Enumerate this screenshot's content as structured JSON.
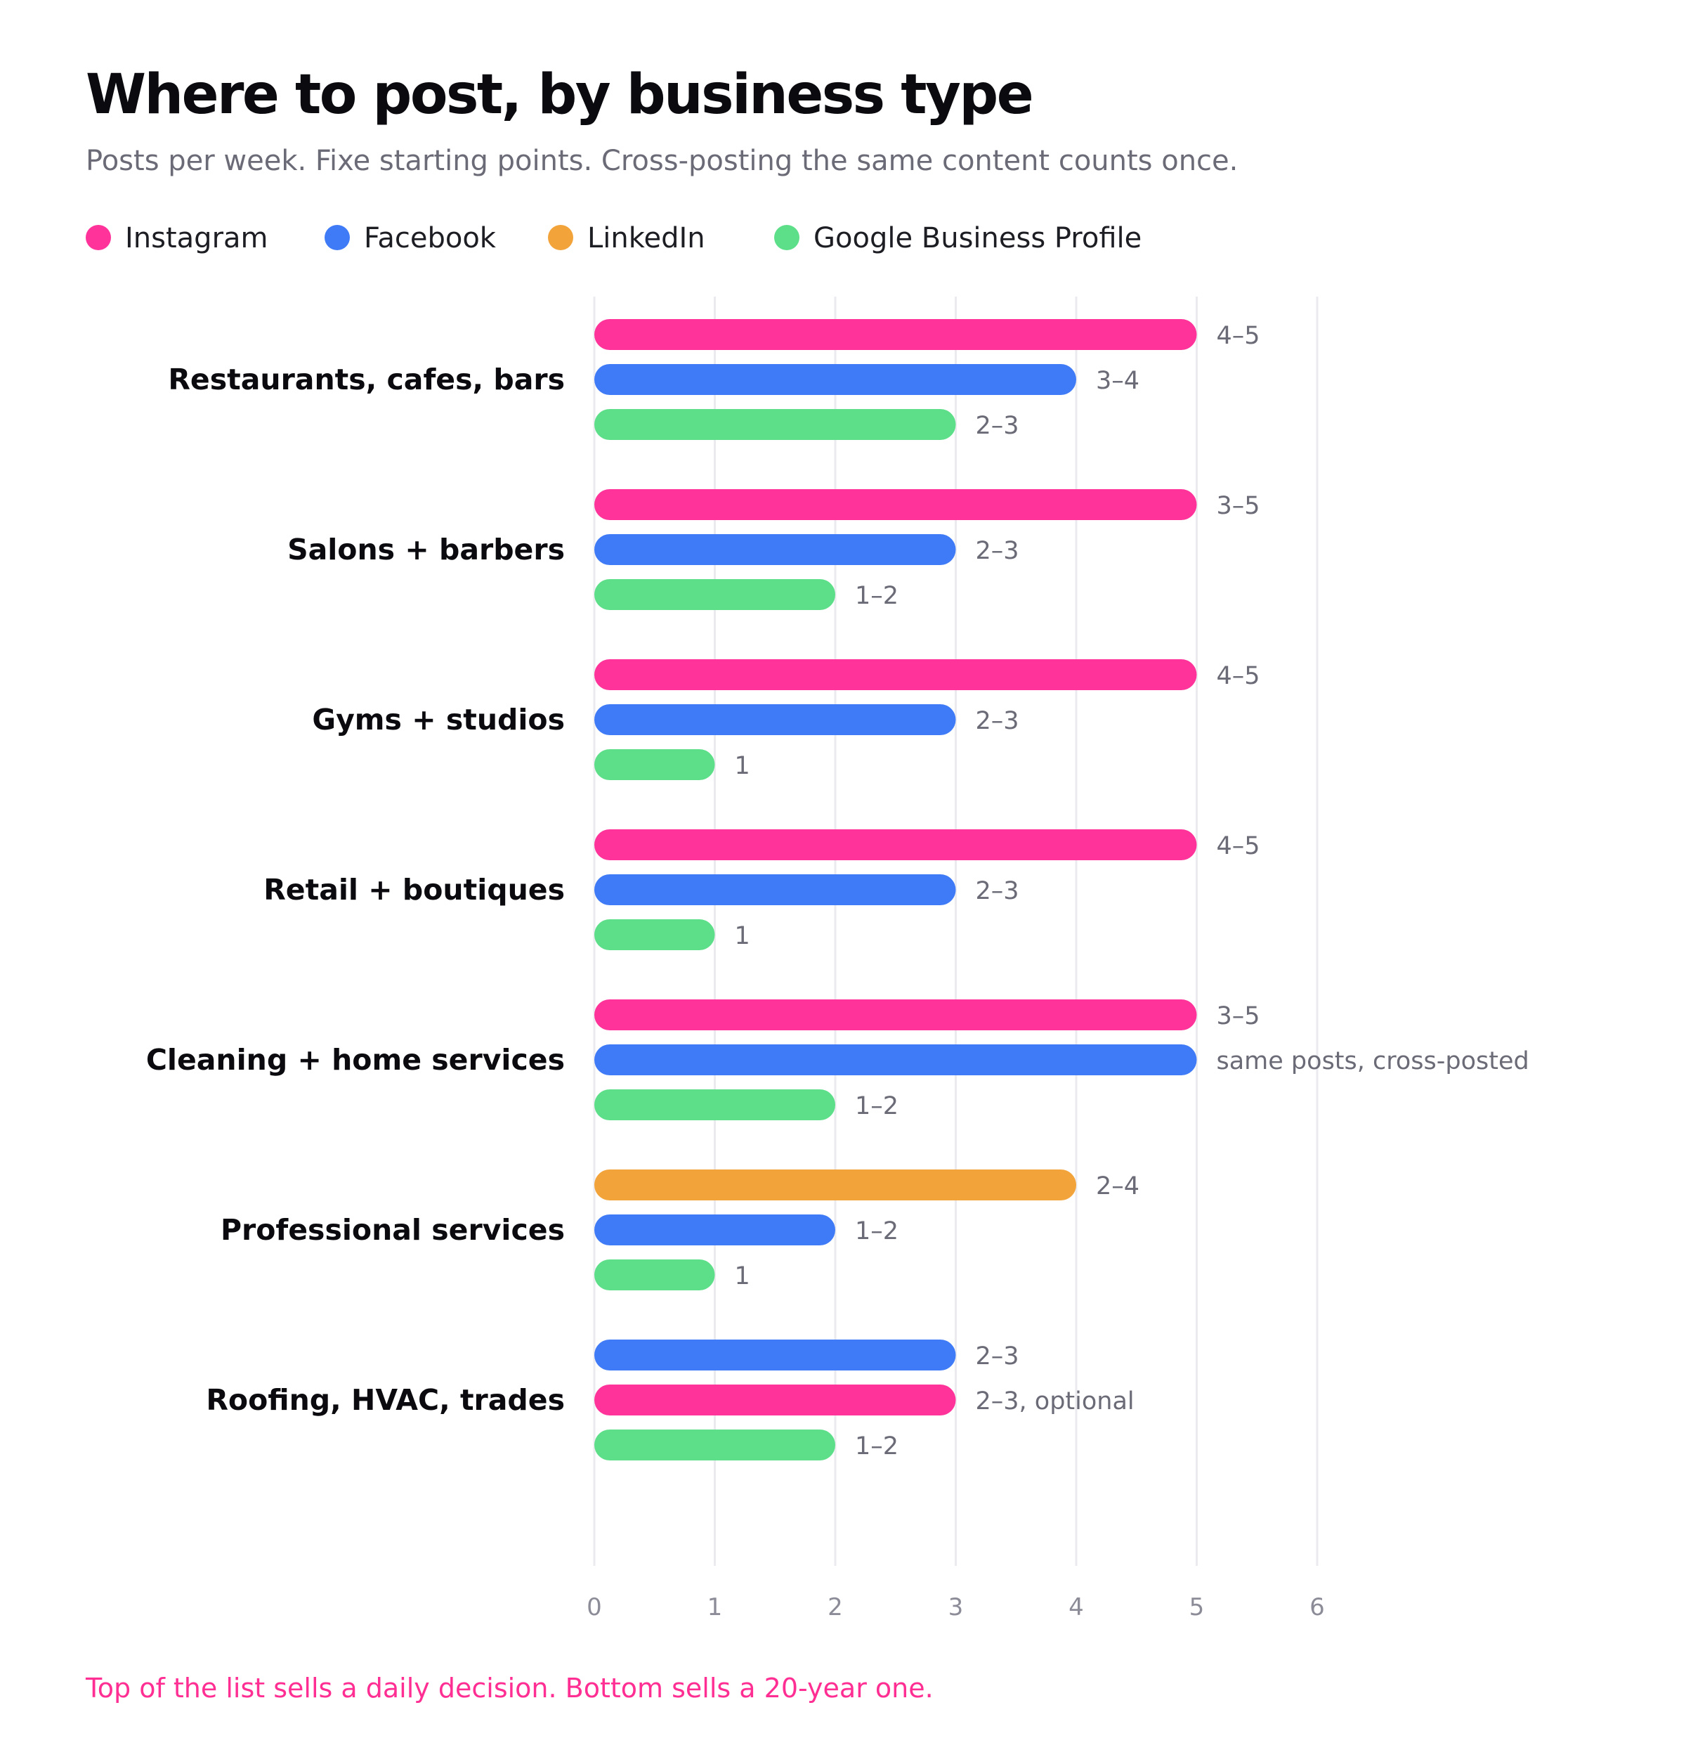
{
  "title": "Where to post, by business type",
  "subtitle": "Posts per week. Fixe starting points. Cross-posting the same content counts once.",
  "legend": [
    {
      "label": "Instagram",
      "color": "#ff3399"
    },
    {
      "label": "Facebook",
      "color": "#3f7bf7"
    },
    {
      "label": "LinkedIn",
      "color": "#f2a33a"
    },
    {
      "label": "Google Business Profile",
      "color": "#5ddf89"
    }
  ],
  "footnote": "Top of the list sells a daily decision. Bottom sells a 20-year one.",
  "chart_data": {
    "type": "bar",
    "orientation": "horizontal",
    "xlim": [
      0,
      6
    ],
    "x_ticks": [
      "0",
      "1",
      "2",
      "3",
      "4",
      "5",
      "6"
    ],
    "grid": true,
    "legend_position": "top",
    "groups": [
      {
        "category": "Restaurants, cafes, bars",
        "bars": [
          {
            "series": "Instagram",
            "value": 5,
            "label": "4–5"
          },
          {
            "series": "Facebook",
            "value": 4,
            "label": "3–4"
          },
          {
            "series": "Google Business Profile",
            "value": 3,
            "label": "2–3"
          }
        ]
      },
      {
        "category": "Salons + barbers",
        "bars": [
          {
            "series": "Instagram",
            "value": 5,
            "label": "3–5"
          },
          {
            "series": "Facebook",
            "value": 3,
            "label": "2–3"
          },
          {
            "series": "Google Business Profile",
            "value": 2,
            "label": "1–2"
          }
        ]
      },
      {
        "category": "Gyms + studios",
        "bars": [
          {
            "series": "Instagram",
            "value": 5,
            "label": "4–5"
          },
          {
            "series": "Facebook",
            "value": 3,
            "label": "2–3"
          },
          {
            "series": "Google Business Profile",
            "value": 1,
            "label": "1"
          }
        ]
      },
      {
        "category": "Retail + boutiques",
        "bars": [
          {
            "series": "Instagram",
            "value": 5,
            "label": "4–5"
          },
          {
            "series": "Facebook",
            "value": 3,
            "label": "2–3"
          },
          {
            "series": "Google Business Profile",
            "value": 1,
            "label": "1"
          }
        ]
      },
      {
        "category": "Cleaning + home services",
        "bars": [
          {
            "series": "Instagram",
            "value": 5,
            "label": "3–5"
          },
          {
            "series": "Facebook",
            "value": 5,
            "label": "same posts, cross-posted"
          },
          {
            "series": "Google Business Profile",
            "value": 2,
            "label": "1–2"
          }
        ]
      },
      {
        "category": "Professional services",
        "bars": [
          {
            "series": "LinkedIn",
            "value": 4,
            "label": "2–4"
          },
          {
            "series": "Facebook",
            "value": 2,
            "label": "1–2"
          },
          {
            "series": "Google Business Profile",
            "value": 1,
            "label": "1"
          }
        ]
      },
      {
        "category": "Roofing, HVAC, trades",
        "bars": [
          {
            "series": "Facebook",
            "value": 3,
            "label": "2–3"
          },
          {
            "series": "Instagram",
            "value": 3,
            "label": "2–3, optional"
          },
          {
            "series": "Google Business Profile",
            "value": 2,
            "label": "1–2"
          }
        ]
      }
    ]
  }
}
